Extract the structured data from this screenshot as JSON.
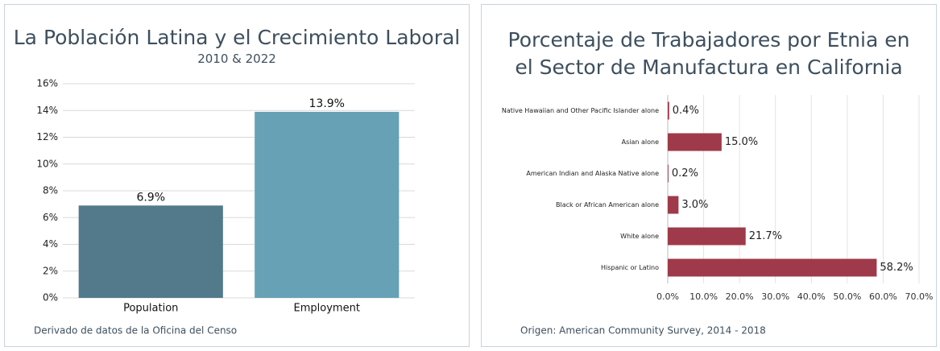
{
  "chart_data": [
    {
      "type": "bar",
      "orientation": "vertical",
      "title": "La Población Latina y el Crecimiento Laboral",
      "subtitle": "2010 & 2022",
      "categories": [
        "Population",
        "Employment"
      ],
      "values": [
        6.9,
        13.9
      ],
      "value_labels": [
        "6.9%",
        "13.9%"
      ],
      "colors": [
        "#527a8a",
        "#66a1b5"
      ],
      "ylim": [
        0,
        16
      ],
      "yticks": [
        {
          "value": 0,
          "label": "0%"
        },
        {
          "value": 2,
          "label": "2%"
        },
        {
          "value": 4,
          "label": "4%"
        },
        {
          "value": 6,
          "label": "6%"
        },
        {
          "value": 8,
          "label": "8%"
        },
        {
          "value": 10,
          "label": "10%"
        },
        {
          "value": 12,
          "label": "12%"
        },
        {
          "value": 14,
          "label": "14%"
        },
        {
          "value": 16,
          "label": "16%"
        }
      ],
      "grid": true,
      "note": "Derivado de datos de la Oficina del Censo"
    },
    {
      "type": "bar",
      "orientation": "horizontal",
      "title": "Porcentaje de Trabajadores por Etnia en el Sector de Manufactura en California",
      "categories": [
        "Native Hawaiian and Other Pacific Islander alone",
        "Asian alone",
        "American Indian and Alaska Native alone",
        "Black or African American alone",
        "White alone",
        "Hispanic or Latino"
      ],
      "values": [
        0.4,
        15.0,
        0.2,
        3.0,
        21.7,
        58.2
      ],
      "value_labels": [
        "0.4%",
        "15.0%",
        "0.2%",
        "3.0%",
        "21.7%",
        "58.2%"
      ],
      "color": "#9e3a4a",
      "xlim": [
        0,
        70
      ],
      "xticks": [
        {
          "value": 0,
          "label": "0.0%"
        },
        {
          "value": 10,
          "label": "10.0%"
        },
        {
          "value": 20,
          "label": "20.0%"
        },
        {
          "value": 30,
          "label": "30.0%"
        },
        {
          "value": 40,
          "label": "40.0%"
        },
        {
          "value": 50,
          "label": "50.0%"
        },
        {
          "value": 60,
          "label": "60.0%"
        },
        {
          "value": 70,
          "label": "70.0%"
        }
      ],
      "grid": true,
      "note": "Origen: American Community Survey, 2014 - 2018"
    }
  ]
}
